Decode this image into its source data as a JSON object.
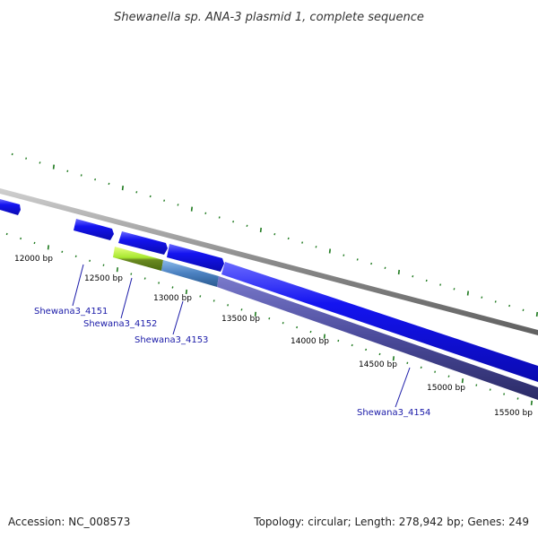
{
  "title": "Shewanella sp. ANA-3 plasmid 1, complete sequence",
  "footer": {
    "accession": "Accession: NC_008573",
    "topology": "Topology: circular; Length: 278,942 bp; Genes: 249"
  },
  "colors": {
    "backbone": "#8a8a8a",
    "tick": "#1f7a1f",
    "cds": "#1010e8",
    "gene_label": "#1a1aa8",
    "hit_lime": "#a8e830",
    "hit_steel": "#4a80c0",
    "hit_slate": "#4a4a9a"
  },
  "ticks": {
    "unit": "bp",
    "labels": [
      "12000 bp",
      "12500 bp",
      "13000 bp",
      "13500 bp",
      "14000 bp",
      "14500 bp",
      "15000 bp",
      "15500 bp"
    ]
  },
  "genes": [
    {
      "label": "Shewana3_4151"
    },
    {
      "label": "Shewana3_4152"
    },
    {
      "label": "Shewana3_4153"
    },
    {
      "label": "Shewana3_4154"
    }
  ]
}
